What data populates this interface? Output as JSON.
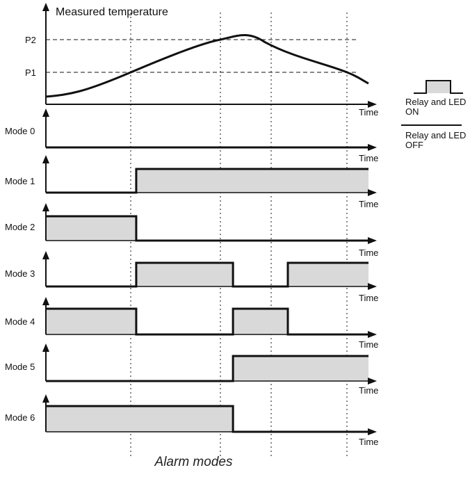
{
  "diagram": {
    "temperature": {
      "y_label": "Measured temperature",
      "x_label": "Time",
      "threshold_labels": [
        "P2",
        "P1"
      ]
    },
    "legend": {
      "on_text": [
        "Relay and LED",
        "ON"
      ],
      "off_text": [
        "Relay and LED",
        "OFF"
      ]
    },
    "fill_color": "#d9d9d9",
    "line_color": "#111111",
    "time_label": "Time",
    "modes": [
      {
        "label": "Mode 0",
        "segments": [
          [
            0,
            1,
            0
          ]
        ]
      },
      {
        "label": "Mode 1",
        "segments": [
          [
            0,
            0.28,
            0
          ],
          [
            0.28,
            1,
            1
          ]
        ]
      },
      {
        "label": "Mode 2",
        "segments": [
          [
            0,
            0.28,
            1
          ],
          [
            0.28,
            1,
            0
          ]
        ]
      },
      {
        "label": "Mode 3",
        "segments": [
          [
            0,
            0.28,
            0
          ],
          [
            0.28,
            0.58,
            1
          ],
          [
            0.58,
            0.75,
            0
          ],
          [
            0.75,
            1,
            1
          ]
        ]
      },
      {
        "label": "Mode 4",
        "segments": [
          [
            0,
            0.28,
            1
          ],
          [
            0.28,
            0.58,
            0
          ],
          [
            0.58,
            0.75,
            1
          ],
          [
            0.75,
            1,
            0
          ]
        ]
      },
      {
        "label": "Mode 5",
        "segments": [
          [
            0,
            0.58,
            0
          ],
          [
            0.58,
            1,
            1
          ]
        ]
      },
      {
        "label": "Mode 6",
        "segments": [
          [
            0,
            0.58,
            1
          ],
          [
            0.58,
            1,
            0
          ]
        ]
      }
    ],
    "caption": "Alarm modes"
  }
}
